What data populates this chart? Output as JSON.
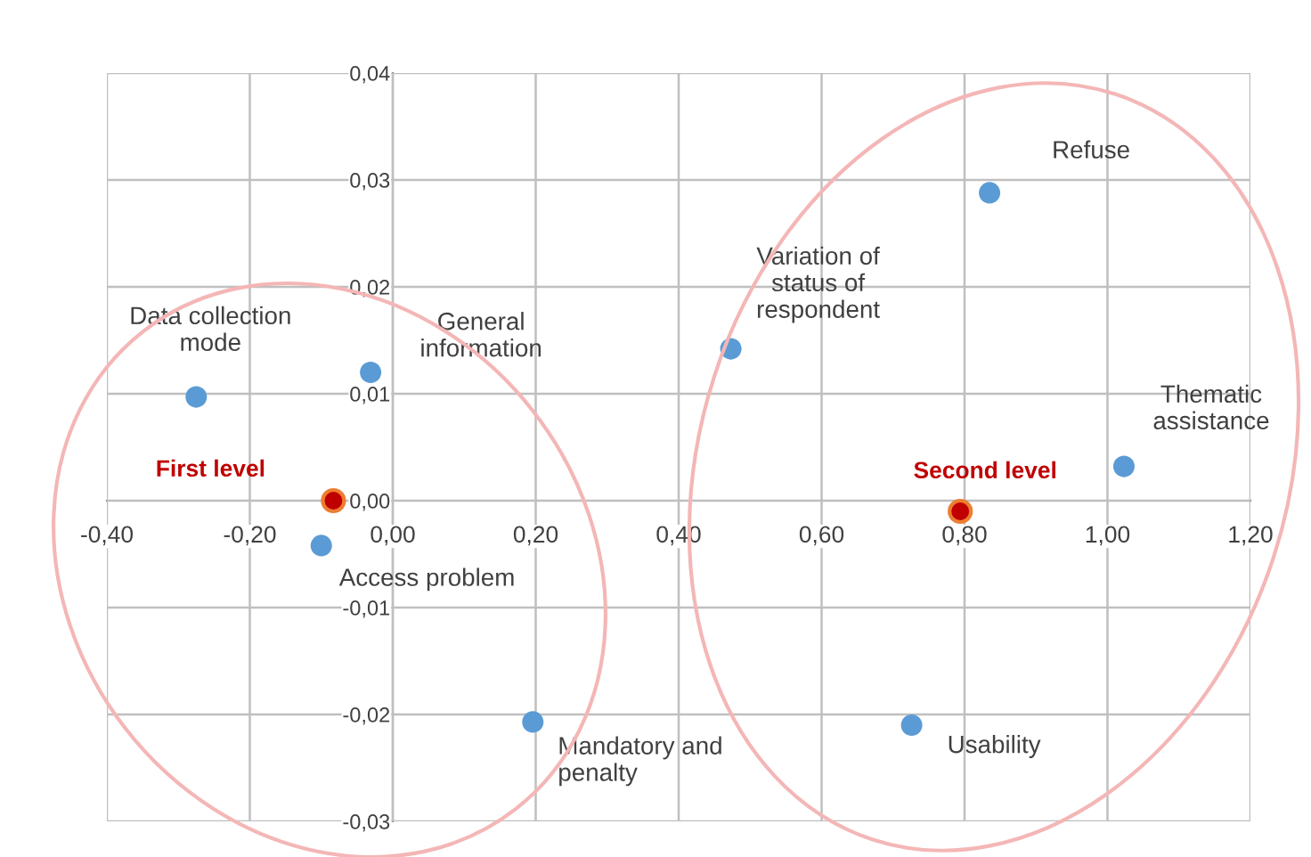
{
  "chart_data": {
    "type": "scatter",
    "series": [
      {
        "color": "#5b9bd5",
        "x": [
          -0.275,
          -0.031,
          -0.1,
          0.196,
          0.473,
          0.835,
          1.023,
          0.726
        ],
        "values": [
          0.0097,
          0.012,
          -0.0042,
          -0.0207,
          0.0142,
          0.0288,
          0.0032,
          -0.021
        ]
      },
      {
        "name": "First level",
        "color": "#c00000",
        "x": [
          -0.083
        ],
        "values": [
          0.0
        ]
      },
      {
        "name": "Second level",
        "color": "#c00000",
        "x": [
          0.794
        ],
        "values": [
          -0.001
        ]
      }
    ],
    "annotations": [
      {
        "text": "Data collection\nmode",
        "x": -0.275,
        "y": 0.0097
      },
      {
        "text": "General\ninformation",
        "x": -0.031,
        "y": 0.012
      },
      {
        "text": "Access problem",
        "x": -0.1,
        "y": -0.0042
      },
      {
        "text": "Mandatory and\npenalty",
        "x": 0.196,
        "y": -0.0207
      },
      {
        "text": "Variation of\nstatus of\nrespondent",
        "x": 0.473,
        "y": 0.0142
      },
      {
        "text": "Refuse",
        "x": 0.835,
        "y": 0.0288
      },
      {
        "text": "Thematic\nassistance",
        "x": 1.023,
        "y": 0.0032
      },
      {
        "text": "Usability",
        "x": 0.726,
        "y": -0.021
      }
    ],
    "xlim": [
      -0.4,
      1.2
    ],
    "xticks": [
      {
        "value": -0.4,
        "label": "-0,40"
      },
      {
        "value": -0.2,
        "label": "-0,20"
      },
      {
        "value": 0,
        "label": "0,00"
      },
      {
        "value": 0.2,
        "label": "0,20"
      },
      {
        "value": 0.4,
        "label": "0,40"
      },
      {
        "value": 0.6,
        "label": "0,60"
      },
      {
        "value": 0.8,
        "label": "0,80"
      },
      {
        "value": 1.0,
        "label": "1,00"
      },
      {
        "value": 1.2,
        "label": "1,20"
      }
    ],
    "ylim": [
      -0.03,
      0.04
    ],
    "yticks": [
      {
        "value": -0.03,
        "label": "-0,03"
      },
      {
        "value": -0.02,
        "label": "-0,02"
      },
      {
        "value": -0.01,
        "label": "-0,01"
      },
      {
        "value": 0,
        "label": "0,00"
      },
      {
        "value": 0.01,
        "label": "0,01"
      },
      {
        "value": 0.02,
        "label": "0,02"
      },
      {
        "value": 0.03,
        "label": "0,03"
      },
      {
        "value": 0.04,
        "label": "0,04"
      }
    ],
    "grid": true,
    "marker": "circle",
    "legend": false
  }
}
